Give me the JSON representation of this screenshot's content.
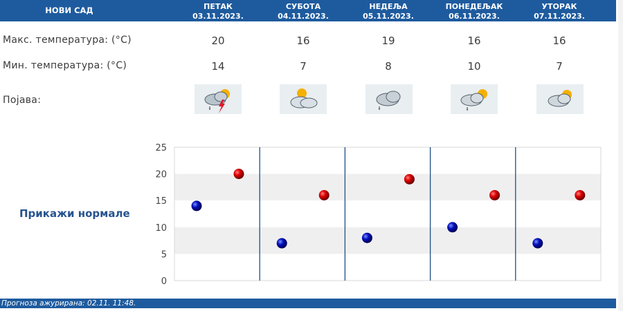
{
  "location": "НОВИ САД",
  "days": [
    {
      "name": "ПЕТАК",
      "date": "03.11.2023.",
      "max": "20",
      "min": "14",
      "icon": "cloud-sun-storm-icon"
    },
    {
      "name": "СУБОТА",
      "date": "04.11.2023.",
      "max": "16",
      "min": "7",
      "icon": "sun-cloud-icon"
    },
    {
      "name": "НЕДЕЉА",
      "date": "05.11.2023.",
      "max": "19",
      "min": "8",
      "icon": "cloud-rain-icon"
    },
    {
      "name": "ПОНЕДЕЉАК",
      "date": "06.11.2023.",
      "max": "16",
      "min": "10",
      "icon": "cloud-sun-rain-icon"
    },
    {
      "name": "УТОРАК",
      "date": "07.11.2023.",
      "max": "16",
      "min": "7",
      "icon": "cloud-sun-icon"
    }
  ],
  "labels": {
    "max": "Макс. температура: (°C)",
    "min": "Мин. температура: (°C)",
    "phenomenon": "Појава:"
  },
  "normals_link": "Прикажи нормале",
  "footer": "Прогноза ажурирана:  02.11.  11:48.",
  "colors": {
    "accent": "#1e5b9e",
    "max_dot": "#cc0000",
    "min_dot": "#0000aa",
    "link": "#26538f"
  },
  "chart_data": {
    "type": "scatter",
    "categories": [
      "03.11.2023.",
      "04.11.2023.",
      "05.11.2023.",
      "06.11.2023.",
      "07.11.2023."
    ],
    "series": [
      {
        "values": [
          14,
          7,
          8,
          10,
          7
        ]
      },
      {
        "values": [
          20,
          16,
          19,
          16,
          16
        ]
      }
    ],
    "ylim": [
      0,
      25
    ],
    "yticks": [
      "0",
      "5",
      "10",
      "15",
      "20",
      "25"
    ],
    "grid": true
  }
}
